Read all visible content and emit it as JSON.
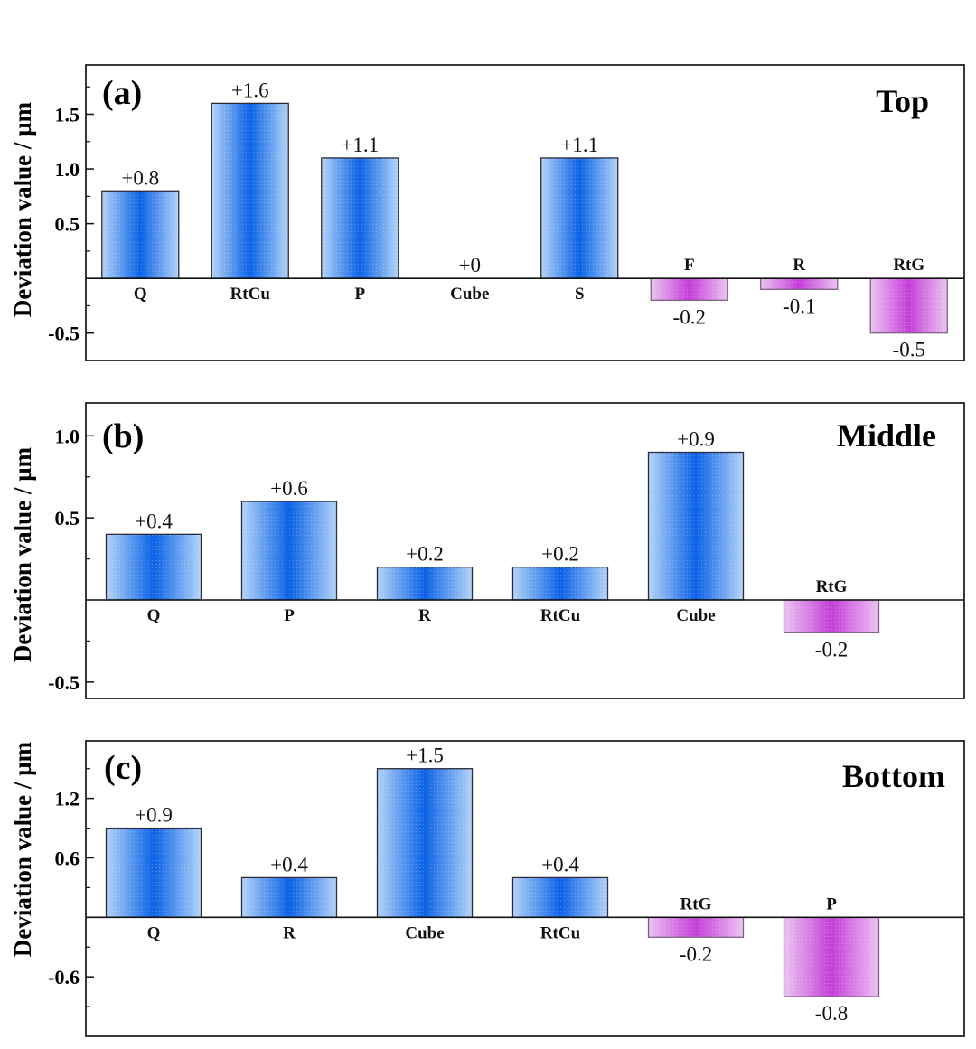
{
  "figure": {
    "ylabel": "Deviation value / µm"
  },
  "colors": {
    "positive_dark": "#0a62e6",
    "positive_light": "#b4d4f8",
    "negative_dark": "#c43ed8",
    "negative_light": "#ecc4f2",
    "bar_edge": "#2a2a3a",
    "frame": "#222222"
  },
  "chart_data": [
    {
      "type": "bar",
      "panel": "(a)",
      "title": "Top",
      "xlabel": "",
      "ylabel": "Deviation value / µm",
      "categories": [
        "Q",
        "RtCu",
        "P",
        "Cube",
        "S",
        "F",
        "R",
        "RtG"
      ],
      "values": [
        0.8,
        1.6,
        1.1,
        0.0,
        1.1,
        -0.2,
        -0.1,
        -0.5
      ],
      "value_labels": [
        "+0.8",
        "+1.6",
        "+1.1",
        "+0",
        "+1.1",
        "-0.2",
        "-0.1",
        "-0.5"
      ],
      "ylim": [
        -0.75,
        1.95
      ],
      "yticks": [
        -0.5,
        0.5,
        1.0,
        1.5
      ],
      "ytick_labels": [
        "-0.5",
        "0.5",
        "1.0",
        "1.5"
      ],
      "minor_yticks": [
        -0.25,
        0.25,
        0.75,
        1.25,
        1.75
      ],
      "grid": false,
      "legend": "none"
    },
    {
      "type": "bar",
      "panel": "(b)",
      "title": "Middle",
      "xlabel": "",
      "ylabel": "Deviation value / µm",
      "categories": [
        "Q",
        "P",
        "R",
        "RtCu",
        "Cube",
        "RtG"
      ],
      "values": [
        0.4,
        0.6,
        0.2,
        0.2,
        0.9,
        -0.2
      ],
      "value_labels": [
        "+0.4",
        "+0.6",
        "+0.2",
        "+0.2",
        "+0.9",
        "-0.2"
      ],
      "ylim": [
        -0.6,
        1.2
      ],
      "yticks": [
        -0.5,
        0.5,
        1.0
      ],
      "ytick_labels": [
        "-0.5",
        "0.5",
        "1.0"
      ],
      "minor_yticks": [
        -0.25,
        0.25,
        0.75
      ],
      "grid": false,
      "legend": "none"
    },
    {
      "type": "bar",
      "panel": "(c)",
      "title": "Bottom",
      "xlabel": "",
      "ylabel": "Deviation value / µm",
      "categories": [
        "Q",
        "R",
        "Cube",
        "RtCu",
        "RtG",
        "P"
      ],
      "values": [
        0.9,
        0.4,
        1.5,
        0.4,
        -0.2,
        -0.8
      ],
      "value_labels": [
        "+0.9",
        "+0.4",
        "+1.5",
        "+0.4",
        "-0.2",
        "-0.8"
      ],
      "ylim": [
        -1.2,
        1.78
      ],
      "yticks": [
        -0.6,
        0.6,
        1.2
      ],
      "ytick_labels": [
        "-0.6",
        "0.6",
        "1.2"
      ],
      "minor_yticks": [
        -0.9,
        -0.3,
        0.3,
        0.9,
        1.5
      ],
      "grid": false,
      "legend": "none"
    }
  ]
}
